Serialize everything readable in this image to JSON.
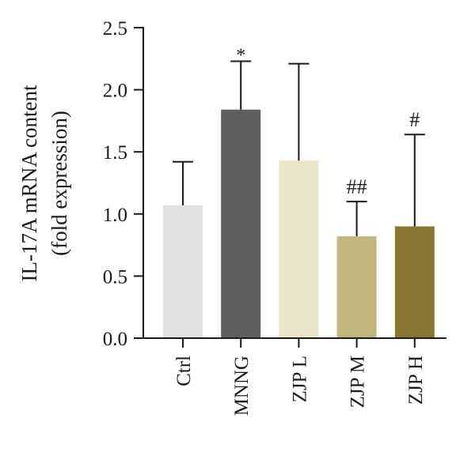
{
  "chart_data": {
    "type": "bar",
    "title": "",
    "xlabel": "",
    "ylabel_lines": [
      "IL-17A mRNA content",
      "(fold expression)"
    ],
    "ylim": [
      0,
      2.5
    ],
    "yticks": [
      "0.0",
      "0.5",
      "1.0",
      "1.5",
      "2.0",
      "2.5"
    ],
    "grid": false,
    "categories": [
      "Ctrl",
      "MNNG",
      "ZJP L",
      "ZJP M",
      "ZJP H"
    ],
    "values": [
      1.07,
      1.84,
      1.43,
      0.82,
      0.9
    ],
    "error_upper": [
      1.42,
      2.23,
      2.21,
      1.1,
      1.64
    ],
    "annotations": [
      "",
      "*",
      "",
      "##",
      "#"
    ],
    "colors": [
      "#e0e0e0",
      "#5f5f5f",
      "#ece5c8",
      "#c2b67e",
      "#897630"
    ]
  }
}
